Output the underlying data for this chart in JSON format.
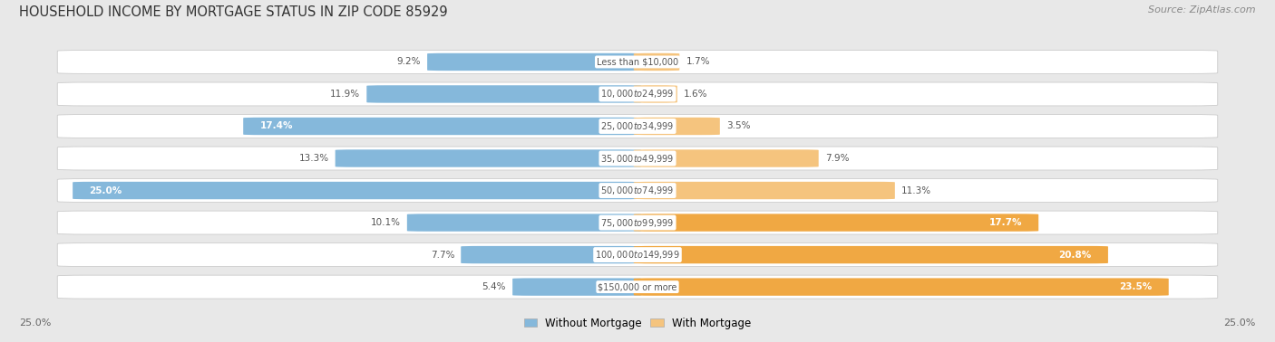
{
  "title": "HOUSEHOLD INCOME BY MORTGAGE STATUS IN ZIP CODE 85929",
  "source": "Source: ZipAtlas.com",
  "categories": [
    "Less than $10,000",
    "$10,000 to $24,999",
    "$25,000 to $34,999",
    "$35,000 to $49,999",
    "$50,000 to $74,999",
    "$75,000 to $99,999",
    "$100,000 to $149,999",
    "$150,000 or more"
  ],
  "without_mortgage": [
    9.2,
    11.9,
    17.4,
    13.3,
    25.0,
    10.1,
    7.7,
    5.4
  ],
  "with_mortgage": [
    1.7,
    1.6,
    3.5,
    7.9,
    11.3,
    17.7,
    20.8,
    23.5
  ],
  "color_without": "#85b8db",
  "color_with": "#f5c47e",
  "color_with_large": "#f0a843",
  "bg_color": "#e8e8e8",
  "row_bg_light": "#f5f5f5",
  "row_bg_dark": "#ebebeb",
  "max_value": 25.0,
  "scale_label": "25.0%",
  "legend_without": "Without Mortgage",
  "legend_with": "With Mortgage",
  "label_threshold": 15.0,
  "large_bar_threshold": 15.0
}
